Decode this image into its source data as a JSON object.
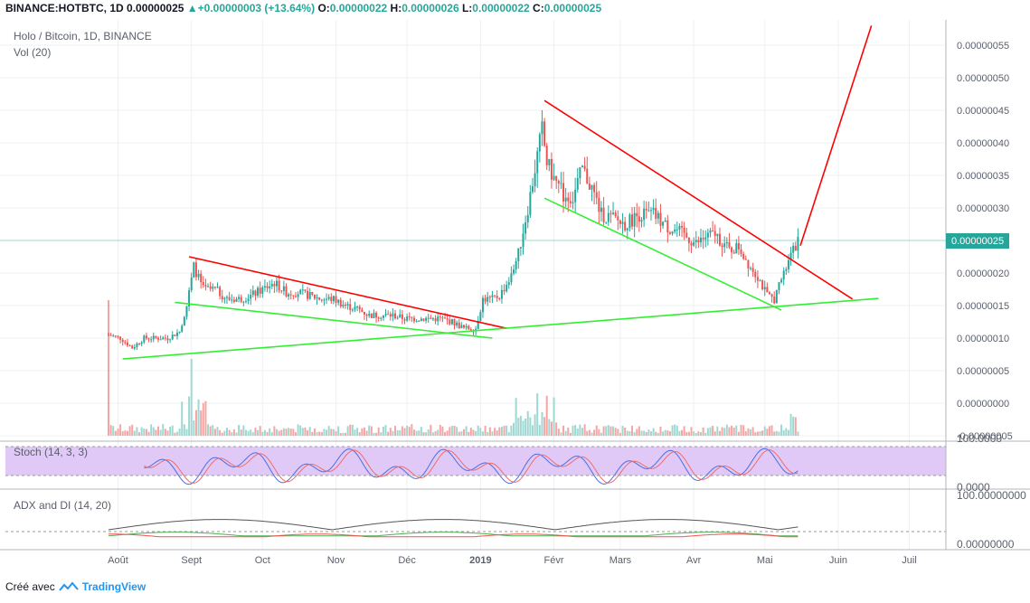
{
  "header": {
    "symbol": "BINANCE:HOTBTC, 1D",
    "last": "0.00000025",
    "change_arrow": "▲",
    "change": "+0.00000003 (+13.64%)",
    "o_label": "O:",
    "o": "0.00000022",
    "h_label": "H:",
    "h": "0.00000026",
    "l_label": "L:",
    "l": "0.00000022",
    "c_label": "C:",
    "c": "0.00000025"
  },
  "main_pane": {
    "title": "Holo / Bitcoin, 1D, BINANCE",
    "vol_label": "Vol (20)",
    "price_badge": "0.00000025",
    "price_badge_value": 2.5e-07
  },
  "stoch_pane": {
    "label": "Stoch (14, 3, 3)",
    "axis": [
      "100.0000",
      "0.0000"
    ]
  },
  "adx_pane": {
    "label": "ADX and DI (14, 20)",
    "axis": [
      "100.00000000",
      "0.00000000"
    ]
  },
  "footer": {
    "prefix": "Créé avec",
    "brand": "TradingView"
  },
  "colors": {
    "up": "#26a69a",
    "down": "#ef5350",
    "trend_red": "#ff0000",
    "trend_green": "#33ee33",
    "stoch_band": "#e1c9f7",
    "badge": "#26a69a"
  },
  "chart_data": {
    "type": "candlestick",
    "title": "Holo / Bitcoin, 1D, BINANCE",
    "x_ticks": [
      "Août",
      "Sept",
      "Oct",
      "Nov",
      "Déc",
      "2019",
      "Févr",
      "Mars",
      "Avr",
      "Mai",
      "Juin",
      "Juil"
    ],
    "x_tick_days": [
      4,
      35,
      65,
      96,
      126,
      157,
      188,
      216,
      247,
      277,
      308,
      338
    ],
    "y_ticks": [
      "0.00000055",
      "0.00000050",
      "0.00000045",
      "0.00000040",
      "0.00000035",
      "0.00000030",
      "0.00000020",
      "0.00000015",
      "0.00000010",
      "0.00000005",
      "0.00000000",
      "-0.00000005"
    ],
    "ylim": [
      -5e-08,
      5.8e-07
    ],
    "price_keyframes_day_close": [
      [
        0,
        1.05e-07
      ],
      [
        5,
        1e-07
      ],
      [
        10,
        8.5e-08
      ],
      [
        15,
        1e-07
      ],
      [
        20,
        1e-07
      ],
      [
        25,
        1e-07
      ],
      [
        30,
        1.1e-07
      ],
      [
        33,
        1.5e-07
      ],
      [
        36,
        2.1e-07
      ],
      [
        40,
        1.75e-07
      ],
      [
        45,
        1.75e-07
      ],
      [
        50,
        1.6e-07
      ],
      [
        55,
        1.6e-07
      ],
      [
        60,
        1.65e-07
      ],
      [
        65,
        1.75e-07
      ],
      [
        70,
        1.85e-07
      ],
      [
        75,
        1.7e-07
      ],
      [
        80,
        1.7e-07
      ],
      [
        85,
        1.65e-07
      ],
      [
        90,
        1.6e-07
      ],
      [
        95,
        1.6e-07
      ],
      [
        100,
        1.5e-07
      ],
      [
        105,
        1.45e-07
      ],
      [
        110,
        1.35e-07
      ],
      [
        115,
        1.35e-07
      ],
      [
        120,
        1.35e-07
      ],
      [
        125,
        1.3e-07
      ],
      [
        130,
        1.3e-07
      ],
      [
        135,
        1.3e-07
      ],
      [
        140,
        1.3e-07
      ],
      [
        145,
        1.25e-07
      ],
      [
        150,
        1.15e-07
      ],
      [
        155,
        1.15e-07
      ],
      [
        158,
        1.6e-07
      ],
      [
        162,
        1.6e-07
      ],
      [
        165,
        1.65e-07
      ],
      [
        170,
        1.95e-07
      ],
      [
        173,
        2.3e-07
      ],
      [
        177,
        3e-07
      ],
      [
        180,
        3.6e-07
      ],
      [
        183,
        4.2e-07
      ],
      [
        185,
        3.7e-07
      ],
      [
        188,
        3.45e-07
      ],
      [
        192,
        3.2e-07
      ],
      [
        196,
        3.15e-07
      ],
      [
        200,
        3.6e-07
      ],
      [
        204,
        3.3e-07
      ],
      [
        208,
        2.9e-07
      ],
      [
        212,
        2.85e-07
      ],
      [
        218,
        2.75e-07
      ],
      [
        224,
        2.9e-07
      ],
      [
        230,
        2.9e-07
      ],
      [
        236,
        2.7e-07
      ],
      [
        240,
        2.65e-07
      ],
      [
        244,
        2.55e-07
      ],
      [
        248,
        2.45e-07
      ],
      [
        252,
        2.55e-07
      ],
      [
        256,
        2.6e-07
      ],
      [
        262,
        2.35e-07
      ],
      [
        266,
        2.4e-07
      ],
      [
        270,
        2.15e-07
      ],
      [
        274,
        1.95e-07
      ],
      [
        278,
        1.65e-07
      ],
      [
        281,
        1.6e-07
      ],
      [
        285,
        2e-07
      ],
      [
        288,
        2.25e-07
      ],
      [
        291,
        2.5e-07
      ]
    ],
    "trendlines": [
      {
        "color": "red",
        "from": [
          34,
          2.25e-07
        ],
        "to": [
          168,
          1.15e-07
        ]
      },
      {
        "color": "green",
        "from": [
          28,
          1.55e-07
        ],
        "to": [
          162,
          1e-07
        ]
      },
      {
        "color": "green",
        "from": [
          6,
          6.8e-08
        ],
        "to": [
          325,
          1.61e-07
        ]
      },
      {
        "color": "red",
        "from": [
          184,
          4.65e-07
        ],
        "to": [
          314,
          1.6e-07
        ]
      },
      {
        "color": "green",
        "from": [
          184,
          3.15e-07
        ],
        "to": [
          284,
          1.43e-07
        ]
      },
      {
        "color": "red",
        "from": [
          292,
          2.42e-07
        ],
        "to": [
          322,
          5.8e-07
        ]
      }
    ]
  }
}
